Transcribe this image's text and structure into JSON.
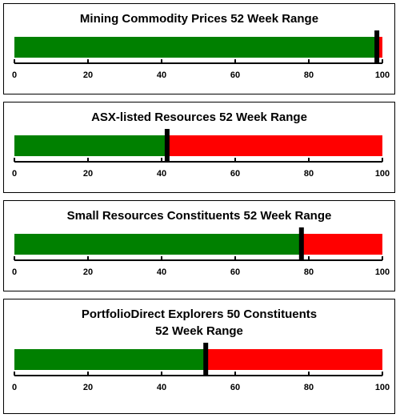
{
  "colors": {
    "below": "#008000",
    "above": "#ff0000",
    "marker": "#000000",
    "axis": "#000000"
  },
  "chart_data": [
    {
      "type": "bar",
      "title_lines": [
        "Mining Commodity Prices 52 Week Range"
      ],
      "value": 98.5,
      "xlim": [
        0,
        100
      ],
      "ticks": [
        "0",
        "20",
        "40",
        "60",
        "80",
        "100"
      ]
    },
    {
      "type": "bar",
      "title_lines": [
        "ASX-listed Resources 52 Week Range"
      ],
      "value": 41.5,
      "xlim": [
        0,
        100
      ],
      "ticks": [
        "0",
        "20",
        "40",
        "60",
        "80",
        "100"
      ]
    },
    {
      "type": "bar",
      "title_lines": [
        "Small Resources Constituents 52 Week Range"
      ],
      "value": 78,
      "xlim": [
        0,
        100
      ],
      "ticks": [
        "0",
        "20",
        "40",
        "60",
        "80",
        "100"
      ]
    },
    {
      "type": "bar",
      "title_lines": [
        "PortfolioDirect Explorers 50 Constituents",
        "52 Week Range"
      ],
      "value": 52,
      "xlim": [
        0,
        100
      ],
      "ticks": [
        "0",
        "20",
        "40",
        "60",
        "80",
        "100"
      ]
    }
  ]
}
